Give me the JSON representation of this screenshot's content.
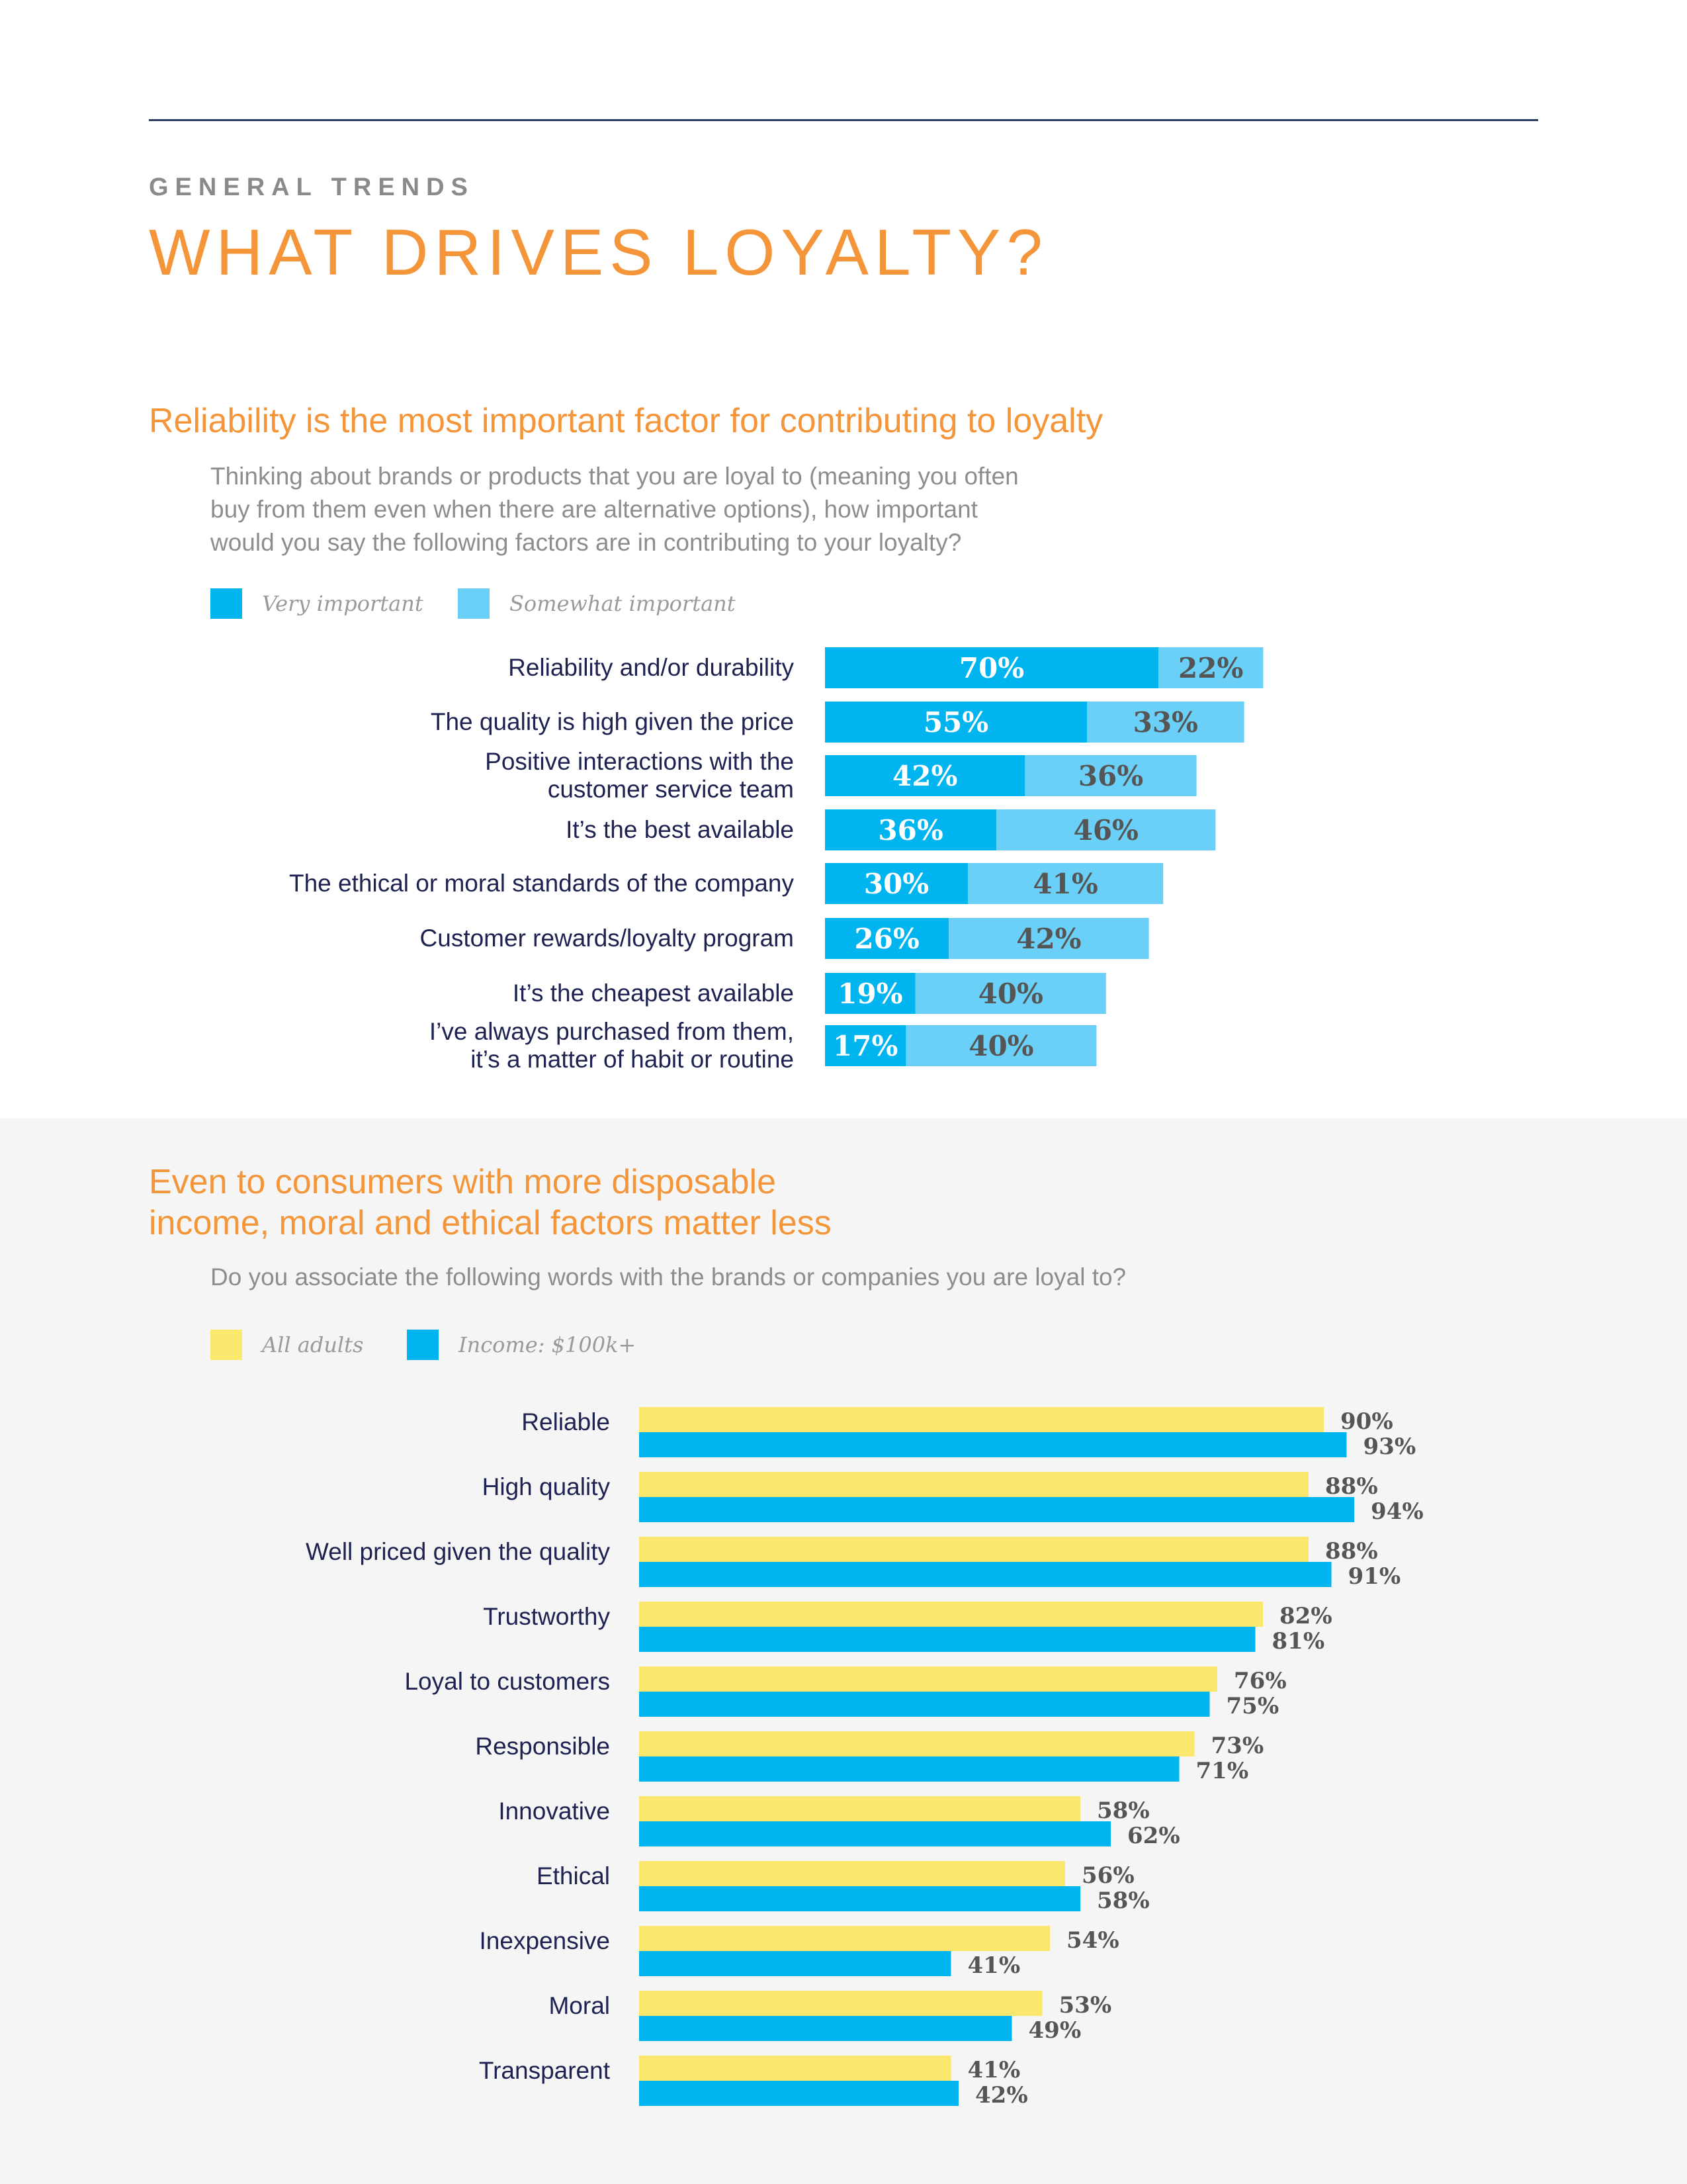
{
  "header": {
    "eyebrow": "GENERAL TRENDS",
    "title": "WHAT DRIVES LOYALTY?"
  },
  "section1": {
    "heading": "Reliability is the most important factor for contributing to loyalty",
    "question_lines": [
      "Thinking about brands or products that you are loyal to (meaning you often",
      "buy from them even when there are alternative options), how important",
      "would you say the following factors are in contributing to your loyalty?"
    ],
    "legend": [
      "Very important",
      "Somewhat important"
    ]
  },
  "section2": {
    "heading_lines": [
      "Even to consumers with more disposable",
      "income, moral and ethical factors matter less"
    ],
    "question": "Do you associate the following words with the brands or companies you are loyal to?",
    "legend": [
      "All adults",
      "Income: $100k+"
    ]
  },
  "colors": {
    "accent_orange": "#f4953a",
    "very_important": "#00b4f0",
    "somewhat_important": "#6ad0f7",
    "all_adults": "#fce76e",
    "income_100k": "#00b4f0",
    "label_navy": "#1d2251",
    "value_gray": "#555555"
  },
  "chart_data": [
    {
      "type": "bar",
      "orientation": "horizontal",
      "stacked": true,
      "categories": [
        [
          "Reliability and/or durability"
        ],
        [
          "The quality is high given the price"
        ],
        [
          "Positive interactions with the",
          "customer service team"
        ],
        [
          "It’s the best available"
        ],
        [
          "The ethical or moral standards of the company"
        ],
        [
          "Customer rewards/loyalty program"
        ],
        [
          "It’s the cheapest available"
        ],
        [
          "I’ve always purchased from them,",
          "it’s a matter of habit or routine"
        ]
      ],
      "series": [
        {
          "name": "Very important",
          "values": [
            70,
            55,
            42,
            36,
            30,
            26,
            19,
            17
          ],
          "labels": [
            "70%",
            "55%",
            "42%",
            "36%",
            "30%",
            "26%",
            "19%",
            "17%"
          ]
        },
        {
          "name": "Somewhat important",
          "values": [
            22,
            33,
            36,
            46,
            41,
            42,
            40,
            40
          ],
          "labels": [
            "22%",
            "33%",
            "36%",
            "46%",
            "41%",
            "42%",
            "40%",
            "40%"
          ]
        }
      ],
      "xlim": [
        0,
        100
      ],
      "legend": "top-left",
      "grid": false
    },
    {
      "type": "bar",
      "orientation": "horizontal",
      "stacked": false,
      "categories": [
        "Reliable",
        "High quality",
        "Well priced given the quality",
        "Trustworthy",
        "Loyal to customers",
        "Responsible",
        "Innovative",
        "Ethical",
        "Inexpensive",
        "Moral",
        "Transparent"
      ],
      "series": [
        {
          "name": "All adults",
          "values": [
            90,
            88,
            88,
            82,
            76,
            73,
            58,
            56,
            54,
            53,
            41
          ],
          "labels": [
            "90%",
            "88%",
            "88%",
            "82%",
            "76%",
            "73%",
            "58%",
            "56%",
            "54%",
            "53%",
            "41%"
          ]
        },
        {
          "name": "Income: $100k+",
          "values": [
            93,
            94,
            91,
            81,
            75,
            71,
            62,
            58,
            41,
            49,
            42
          ],
          "labels": [
            "93%",
            "94%",
            "91%",
            "81%",
            "75%",
            "71%",
            "62%",
            "58%",
            "41%",
            "49%",
            "42%"
          ]
        }
      ],
      "xlim": [
        0,
        100
      ],
      "legend": "top-left",
      "grid": false
    }
  ]
}
